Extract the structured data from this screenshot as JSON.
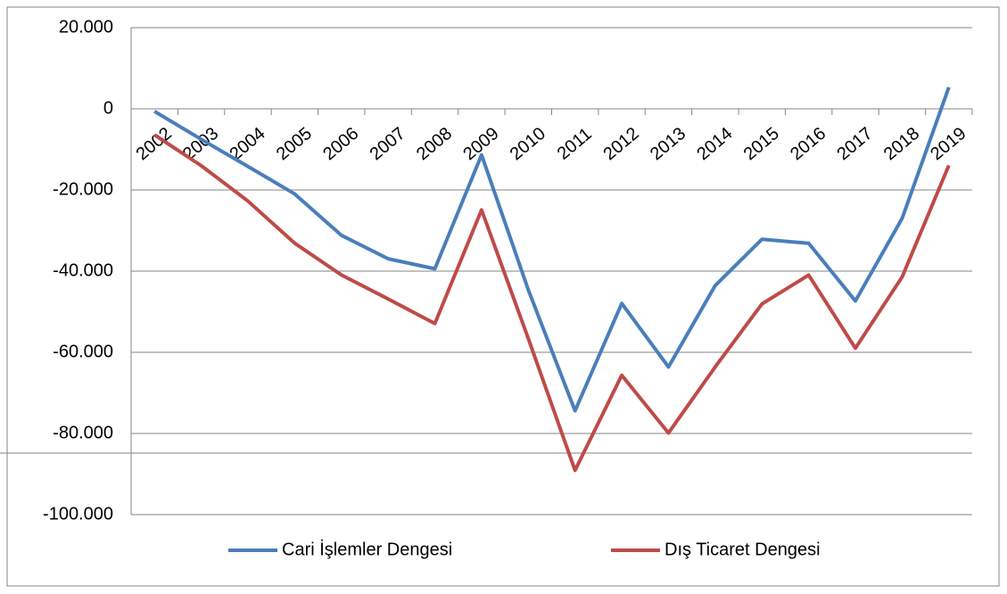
{
  "chart_data": {
    "type": "line",
    "categories": [
      "2002",
      "2003",
      "2004",
      "2005",
      "2006",
      "2007",
      "2008",
      "2009",
      "2010",
      "2011",
      "2012",
      "2013",
      "2014",
      "2015",
      "2016",
      "2017",
      "2018",
      "2019"
    ],
    "series": [
      {
        "name": "Cari İşlemler Dengesi",
        "color": "#4a7ebb",
        "values": [
          -626,
          -7515,
          -14198,
          -20980,
          -31168,
          -36949,
          -39425,
          -11358,
          -44616,
          -74402,
          -47962,
          -63621,
          -43552,
          -32145,
          -33137,
          -47347,
          -27010,
          5312
        ]
      },
      {
        "name": "Dış Ticaret Dengesi",
        "color": "#be4b48",
        "values": [
          -6409,
          -14010,
          -22736,
          -33114,
          -40936,
          -46855,
          -52912,
          -24918,
          -56616,
          -89085,
          -65670,
          -79879,
          -63597,
          -48080,
          -40968,
          -58990,
          -41442,
          -13944
        ]
      }
    ],
    "ylim": [
      -100000,
      20000
    ],
    "yticks": [
      {
        "value": -100000,
        "label": "-100.000"
      },
      {
        "value": -80000,
        "label": "-80.000"
      },
      {
        "value": -60000,
        "label": "-60.000"
      },
      {
        "value": -40000,
        "label": "-40.000"
      },
      {
        "value": -20000,
        "label": "-20.000"
      },
      0,
      {
        "value": 20000,
        "label": "20.000"
      }
    ],
    "grid": true
  }
}
